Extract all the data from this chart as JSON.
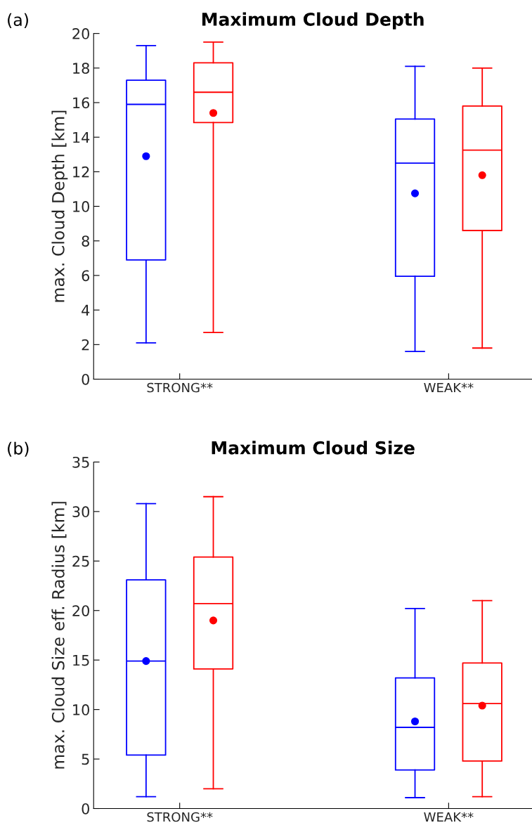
{
  "chart_data": [
    {
      "type": "box",
      "title": "Maximum Cloud Depth",
      "ylabel": "max. Cloud Depth [km]",
      "annotations": [
        "(a)"
      ],
      "categories": [
        "STRONG**",
        "WEAK**"
      ],
      "ylim": [
        0,
        20
      ],
      "yticks": [
        0,
        2,
        4,
        6,
        8,
        10,
        12,
        14,
        16,
        18,
        20
      ],
      "grid": false,
      "marker": "circle",
      "series": [
        {
          "color": "#0000ff",
          "boxes": [
            {
              "low": 2.1,
              "q1": 6.9,
              "median": 15.9,
              "q3": 17.3,
              "high": 19.3,
              "mean": 12.9
            },
            {
              "low": 1.6,
              "q1": 5.95,
              "median": 12.5,
              "q3": 15.05,
              "high": 18.1,
              "mean": 10.75
            }
          ]
        },
        {
          "color": "#ff0000",
          "boxes": [
            {
              "low": 2.7,
              "q1": 14.85,
              "median": 16.6,
              "q3": 18.3,
              "high": 19.5,
              "mean": 15.4
            },
            {
              "low": 1.8,
              "q1": 8.6,
              "median": 13.25,
              "q3": 15.8,
              "high": 18.0,
              "mean": 11.8
            }
          ]
        }
      ]
    },
    {
      "type": "box",
      "title": "Maximum Cloud Size",
      "ylabel": "max. Cloud Size eff. Radius [km]",
      "annotations": [
        "(b)"
      ],
      "categories": [
        "STRONG**",
        "WEAK**"
      ],
      "ylim": [
        0,
        35
      ],
      "yticks": [
        0,
        5,
        10,
        15,
        20,
        25,
        30,
        35
      ],
      "grid": false,
      "marker": "circle",
      "series": [
        {
          "color": "#0000ff",
          "boxes": [
            {
              "low": 1.2,
              "q1": 5.4,
              "median": 14.9,
              "q3": 23.1,
              "high": 30.8,
              "mean": 14.9
            },
            {
              "low": 1.1,
              "q1": 3.9,
              "median": 8.2,
              "q3": 13.2,
              "high": 20.2,
              "mean": 8.8
            }
          ]
        },
        {
          "color": "#ff0000",
          "boxes": [
            {
              "low": 2.0,
              "q1": 14.1,
              "median": 20.7,
              "q3": 25.4,
              "high": 31.5,
              "mean": 19.0
            },
            {
              "low": 1.2,
              "q1": 4.8,
              "median": 10.6,
              "q3": 14.7,
              "high": 21.0,
              "mean": 10.4
            }
          ]
        }
      ]
    }
  ]
}
